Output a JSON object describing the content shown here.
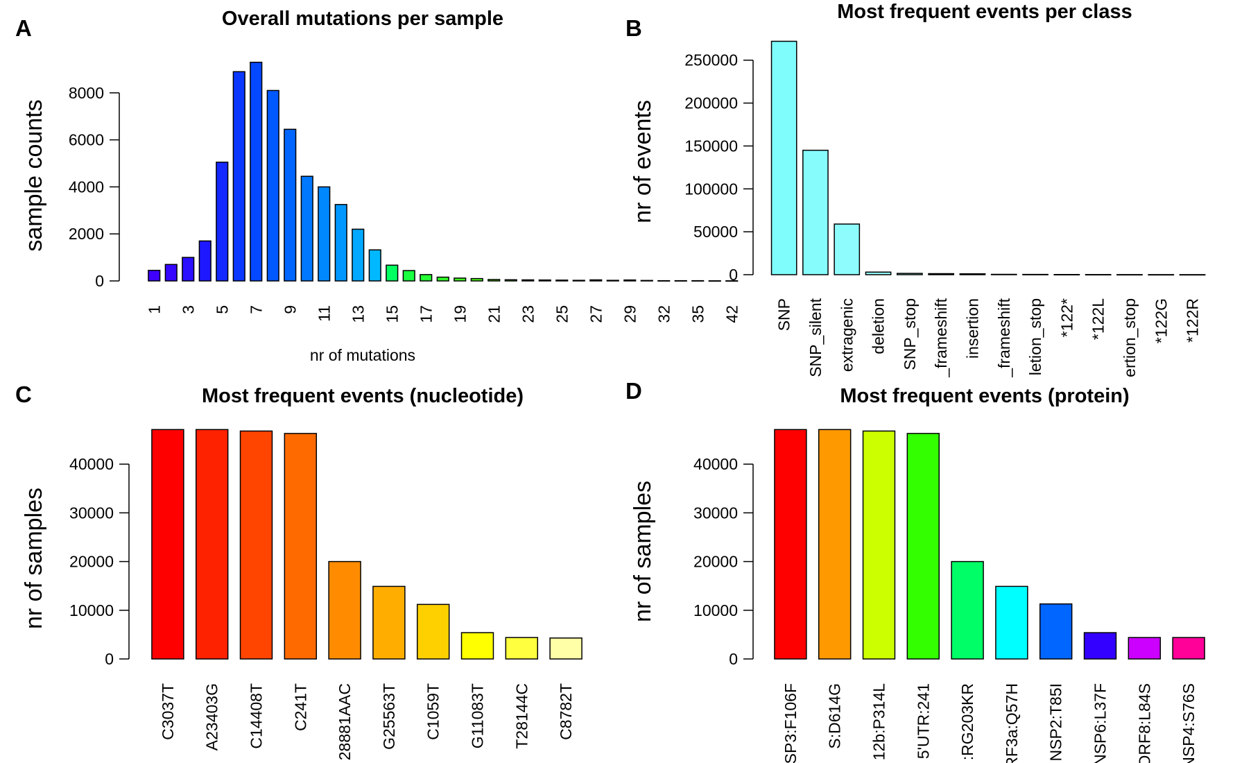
{
  "chart_data": [
    {
      "panel": "A",
      "type": "bar",
      "title": "Overall mutations per sample",
      "xlabel": "nr of mutations",
      "ylabel": "sample counts",
      "ylim": [
        0,
        9500
      ],
      "yticks": [
        0,
        2000,
        4000,
        6000,
        8000
      ],
      "categories": [
        "1",
        "2",
        "3",
        "4",
        "5",
        "6",
        "7",
        "8",
        "9",
        "10",
        "11",
        "12",
        "13",
        "14",
        "15",
        "16",
        "17",
        "18",
        "19",
        "20",
        "21",
        "22",
        "23",
        "24",
        "25",
        "26",
        "27",
        "28",
        "29",
        "31",
        "32",
        "34",
        "35",
        "37",
        "42"
      ],
      "category_labels_shown": [
        "1",
        "3",
        "5",
        "7",
        "9",
        "11",
        "13",
        "15",
        "17",
        "19",
        "21",
        "23",
        "25",
        "27",
        "29",
        "32",
        "35",
        "42"
      ],
      "values": [
        450,
        700,
        1000,
        1700,
        5050,
        8900,
        9300,
        8100,
        6450,
        4450,
        4000,
        3250,
        2200,
        1320,
        670,
        440,
        270,
        160,
        120,
        100,
        60,
        50,
        45,
        40,
        35,
        25,
        45,
        25,
        40,
        20,
        10,
        10,
        10,
        5,
        5
      ],
      "colors": [
        "#3f00ff",
        "#3607ff",
        "#2a10ff",
        "#1d18ff",
        "#1428ff",
        "#0b38ff",
        "#0448ff",
        "#0058ff",
        "#0066ff",
        "#0078ff",
        "#0088ff",
        "#0098ff",
        "#00a8ff",
        "#00b8ff",
        "#00ff60",
        "#1aff40",
        "#25ff35",
        "#30ff28",
        "#40ff20",
        "#50ff18",
        "#60ff10",
        "#70ff08",
        "#80ff00",
        "#90ff00",
        "#a0ff00",
        "#b0ff00",
        "#c0ff00",
        "#d0ff00",
        "#e0ff00",
        "#f0ff00",
        "#ffff00",
        "#ffff30",
        "#ffff60",
        "#ffff90",
        "#ffffc0"
      ]
    },
    {
      "panel": "B",
      "type": "bar",
      "title": "Most frequent events per class",
      "xlabel": "",
      "ylabel": "nr of events",
      "ylim": [
        0,
        270000
      ],
      "yticks": [
        0,
        50000,
        100000,
        150000,
        200000,
        250000
      ],
      "categories": [
        "SNP",
        "SNP_silent",
        "extragenic",
        "deletion",
        "SNP_stop",
        "_frameshift",
        "insertion",
        "_frameshift",
        "letion_stop",
        "*122*",
        "*122L",
        "ertion_stop",
        "*122G",
        "*122R"
      ],
      "values": [
        272000,
        145000,
        59000,
        3000,
        1500,
        1200,
        1000,
        400,
        300,
        200,
        150,
        100,
        80,
        60
      ],
      "colors": [
        "#7ffcfc",
        "#86fcfc",
        "#8efcfc",
        "#95fcfc",
        "#9dfcfc",
        "#a4fcfc",
        "#acfcfc",
        "#b4fcfc",
        "#bbfcfc",
        "#c3fcfc",
        "#cafcfc",
        "#d2fcfc",
        "#d9fcfc",
        "#e1fcfc"
      ]
    },
    {
      "panel": "C",
      "type": "bar",
      "title": "Most frequent events (nucleotide)",
      "xlabel": "",
      "ylabel": "nr of samples",
      "ylim": [
        0,
        47000
      ],
      "yticks": [
        0,
        10000,
        20000,
        30000,
        40000
      ],
      "categories": [
        "C3037T",
        "A23403G",
        "C14408T",
        "C241T",
        "28881AAC",
        "G25563T",
        "C1059T",
        "G11083T",
        "T28144C",
        "C8782T"
      ],
      "values": [
        47100,
        47100,
        46800,
        46300,
        20000,
        14900,
        11200,
        5400,
        4400,
        4300
      ],
      "colors": [
        "#ff0000",
        "#ff2200",
        "#ff4500",
        "#ff6a00",
        "#ff8c00",
        "#ffae00",
        "#ffd000",
        "#ffff00",
        "#ffff40",
        "#ffffa8"
      ]
    },
    {
      "panel": "D",
      "type": "bar",
      "title": "Most frequent events (protein)",
      "xlabel": "",
      "ylabel": "nr of samples",
      "ylim": [
        0,
        47000
      ],
      "yticks": [
        0,
        10000,
        20000,
        30000,
        40000
      ],
      "categories": [
        "SP3:F106F",
        "S:D614G",
        "12b:P314L",
        "5'UTR:241",
        ":RG203KR",
        "RF3a:Q57H",
        "NSP2:T85I",
        "NSP6:L37F",
        "ORF8:L84S",
        "NSP4:S76S"
      ],
      "values": [
        47100,
        47100,
        46800,
        46300,
        20000,
        14900,
        11300,
        5400,
        4400,
        4400
      ],
      "colors": [
        "#ff0000",
        "#ff9900",
        "#ccff00",
        "#33ff00",
        "#00ff66",
        "#00ffff",
        "#0066ff",
        "#3300ff",
        "#cc00ff",
        "#ff0099"
      ]
    }
  ]
}
